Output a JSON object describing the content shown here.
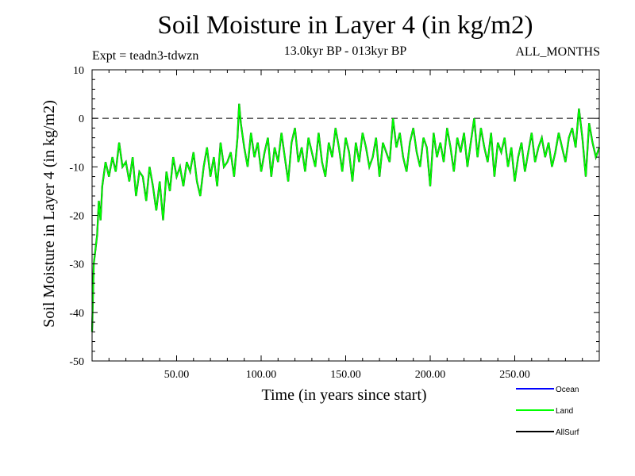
{
  "chart_data": {
    "type": "line",
    "title": "Soil Moisture in Layer 4 (in kg/m2)",
    "subtitle": "13.0kyr BP - 013kyr BP",
    "expt_label": "Expt = teadn3-tdwzn",
    "period_label": "ALL_MONTHS",
    "xlabel": "Time (in years since start)",
    "ylabel": "Soil Moisture in Layer 4 (in kg/m2)",
    "xlim": [
      0,
      300
    ],
    "ylim": [
      -50,
      10
    ],
    "x_ticks": [
      50,
      100,
      150,
      200,
      250
    ],
    "x_tick_labels": [
      "50.00",
      "100.00",
      "150.00",
      "200.00",
      "250.00"
    ],
    "y_ticks": [
      -50,
      -40,
      -30,
      -20,
      -10,
      0,
      10
    ],
    "y_tick_labels": [
      "-50",
      "-40",
      "-30",
      "-20",
      "-10",
      "0",
      "10"
    ],
    "reference_line": 0,
    "series": [
      {
        "name": "Ocean",
        "color": "#0000ff",
        "x": [],
        "values": []
      },
      {
        "name": "Land",
        "color": "#00ff00",
        "x": [
          0,
          1,
          2,
          3,
          4,
          5,
          6,
          8,
          10,
          12,
          14,
          16,
          18,
          20,
          22,
          24,
          26,
          28,
          30,
          32,
          34,
          36,
          38,
          40,
          42,
          44,
          46,
          48,
          50,
          52,
          54,
          56,
          58,
          60,
          62,
          64,
          66,
          68,
          70,
          72,
          74,
          76,
          78,
          80,
          82,
          84,
          86,
          87,
          88,
          90,
          92,
          94,
          96,
          98,
          100,
          102,
          104,
          106,
          108,
          110,
          112,
          114,
          116,
          118,
          120,
          122,
          124,
          126,
          128,
          130,
          132,
          134,
          136,
          138,
          140,
          142,
          144,
          146,
          148,
          150,
          152,
          154,
          156,
          158,
          160,
          162,
          164,
          166,
          168,
          170,
          172,
          174,
          176,
          178,
          180,
          182,
          184,
          186,
          188,
          190,
          192,
          194,
          196,
          198,
          200,
          202,
          204,
          206,
          208,
          210,
          212,
          214,
          216,
          218,
          220,
          222,
          224,
          226,
          228,
          230,
          232,
          234,
          236,
          238,
          240,
          242,
          244,
          246,
          248,
          250,
          252,
          254,
          256,
          258,
          260,
          262,
          264,
          266,
          268,
          270,
          272,
          274,
          276,
          278,
          280,
          282,
          284,
          286,
          288,
          290,
          292,
          294,
          296,
          298,
          300
        ],
        "values": [
          -44,
          -30,
          -27,
          -24,
          -17,
          -21,
          -14,
          -9,
          -12,
          -8,
          -11,
          -5,
          -10,
          -9,
          -13,
          -8,
          -16,
          -11,
          -12,
          -17,
          -10,
          -14,
          -19,
          -13,
          -21,
          -11,
          -15,
          -8,
          -12,
          -10,
          -14,
          -9,
          -11,
          -7,
          -13,
          -16,
          -10,
          -6,
          -12,
          -8,
          -14,
          -5,
          -10,
          -9,
          -7,
          -12,
          -4,
          3,
          -1,
          -6,
          -10,
          -3,
          -8,
          -5,
          -11,
          -7,
          -4,
          -12,
          -6,
          -9,
          -3,
          -8,
          -13,
          -5,
          -2,
          -9,
          -6,
          -11,
          -4,
          -7,
          -10,
          -3,
          -9,
          -12,
          -5,
          -8,
          -2,
          -6,
          -11,
          -4,
          -7,
          -13,
          -5,
          -9,
          -3,
          -6,
          -10,
          -8,
          -4,
          -12,
          -5,
          -7,
          -9,
          0,
          -6,
          -3,
          -8,
          -11,
          -5,
          -2,
          -7,
          -10,
          -4,
          -6,
          -14,
          -3,
          -8,
          -5,
          -9,
          -2,
          -6,
          -11,
          -4,
          -7,
          -3,
          -10,
          -5,
          0,
          -8,
          -2,
          -6,
          -9,
          -3,
          -12,
          -5,
          -7,
          -4,
          -10,
          -6,
          -13,
          -8,
          -5,
          -11,
          -7,
          -3,
          -9,
          -6,
          -4,
          -8,
          -5,
          -10,
          -7,
          -3,
          -6,
          -9,
          -4,
          -2,
          -6,
          2,
          -4,
          -12,
          -1,
          -5,
          -8,
          -6
        ]
      },
      {
        "name": "AllSurf",
        "color": "#000000",
        "x": [],
        "values": []
      }
    ],
    "legend": [
      {
        "name": "Ocean",
        "color": "#0000ff"
      },
      {
        "name": "Land",
        "color": "#00ff00"
      },
      {
        "name": "AllSurf",
        "color": "#000000"
      }
    ],
    "legend_position": "bottom-right, below plot"
  }
}
